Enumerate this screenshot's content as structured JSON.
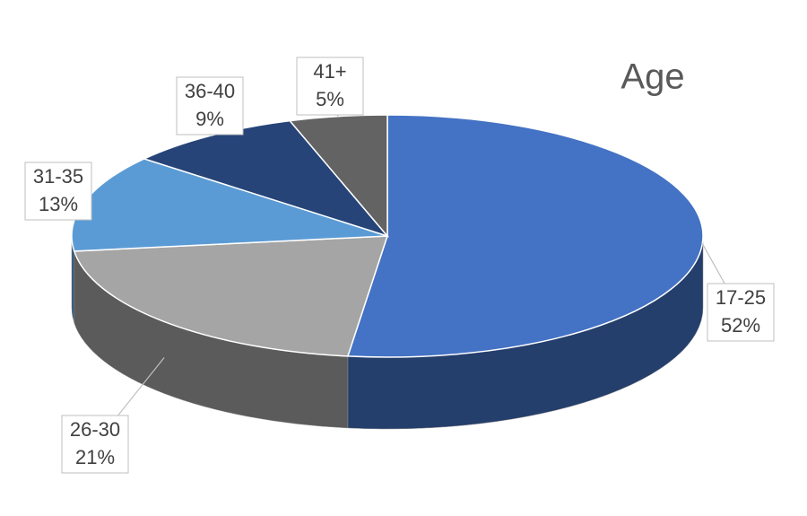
{
  "chart_data": {
    "type": "pie",
    "title": "Age",
    "categories": [
      "17-25",
      "26-30",
      "31-35",
      "36-40",
      "41+"
    ],
    "values": [
      52,
      21,
      13,
      9,
      5
    ],
    "value_labels": [
      "52%",
      "21%",
      "13%",
      "9%",
      "5%"
    ],
    "colors": [
      "#4472c4",
      "#a5a5a5",
      "#5b9bd5",
      "#264478",
      "#636363"
    ]
  }
}
